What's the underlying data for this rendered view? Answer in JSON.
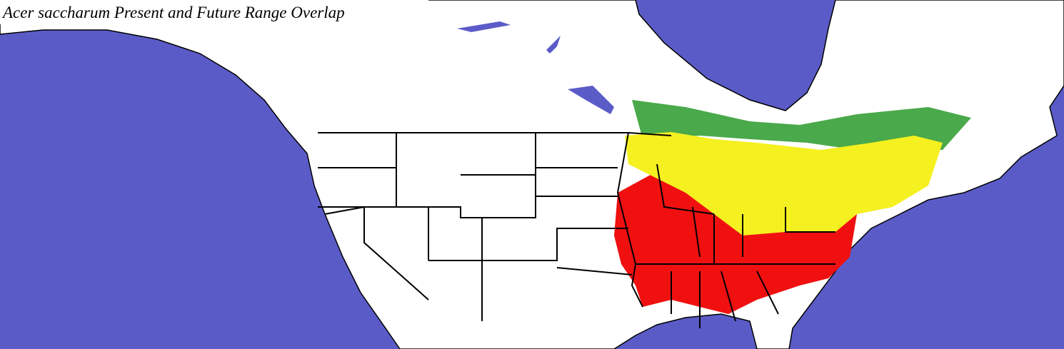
{
  "title": "Acer saccharum Present and Future Range Overlap"
}
